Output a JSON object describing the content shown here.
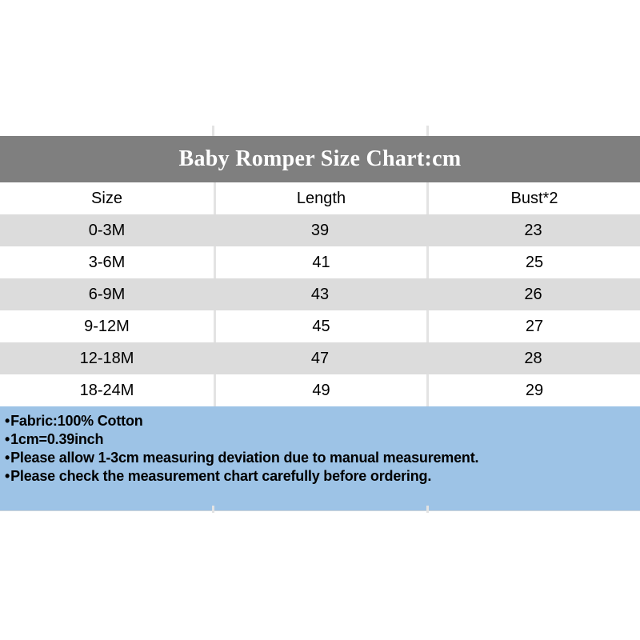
{
  "chart_data": {
    "type": "table",
    "title": "Baby Romper Size Chart:cm",
    "columns": [
      "Size",
      "Length",
      "Bust*2"
    ],
    "rows": [
      [
        "0-3M",
        "39",
        "23"
      ],
      [
        "3-6M",
        "41",
        "25"
      ],
      [
        "6-9M",
        "43",
        "26"
      ],
      [
        "9-12M",
        "45",
        "27"
      ],
      [
        "12-18M",
        "47",
        "28"
      ],
      [
        "18-24M",
        "49",
        "29"
      ]
    ],
    "layout": "title band on gray header; 3 equal centered columns; alternating gray/white rows"
  },
  "notes": {
    "bullet": "•",
    "lines": [
      "Fabric:100% Cotton",
      "1cm=0.39inch",
      "Please allow 1-3cm measuring deviation due to manual measurement.",
      "Please check the measurement chart carefully before ordering."
    ]
  },
  "colors": {
    "title_band_bg": "#7f7f7f",
    "title_text": "#ffffff",
    "row_alt_bg": "#dcdcdc",
    "row_white_bg": "#ffffff",
    "gridline": "#e3e3e3",
    "notes_bg": "#9dc3e6",
    "body_text": "#000000"
  }
}
